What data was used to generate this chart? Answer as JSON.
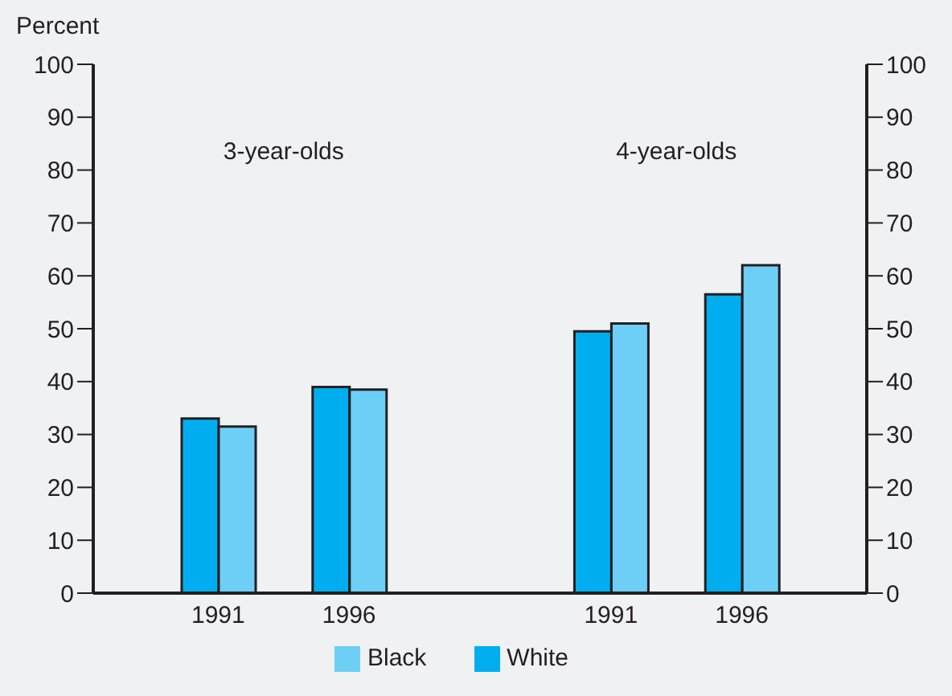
{
  "chart_data": {
    "type": "bar",
    "ylabel": "Percent",
    "categories": [
      "1991",
      "1996",
      null,
      "1991",
      "1996"
    ],
    "series": [
      {
        "name": "White",
        "color": "#00aeef",
        "values": [
          33,
          39,
          null,
          49.5,
          56.5
        ]
      },
      {
        "name": "Black",
        "color": "#6dcff6",
        "values": [
          31.5,
          38.5,
          null,
          51,
          62
        ]
      }
    ],
    "ylim": [
      0,
      100
    ],
    "yticks": [
      0,
      10,
      20,
      30,
      40,
      50,
      60,
      70,
      80,
      90,
      100
    ],
    "y2lim": [
      0,
      100
    ],
    "y2ticks": [
      0,
      10,
      20,
      30,
      40,
      50,
      60,
      70,
      80,
      90,
      100
    ],
    "annotations": [
      "3-year-olds",
      "4-year-olds"
    ],
    "legend": "bottom",
    "grid": false
  }
}
